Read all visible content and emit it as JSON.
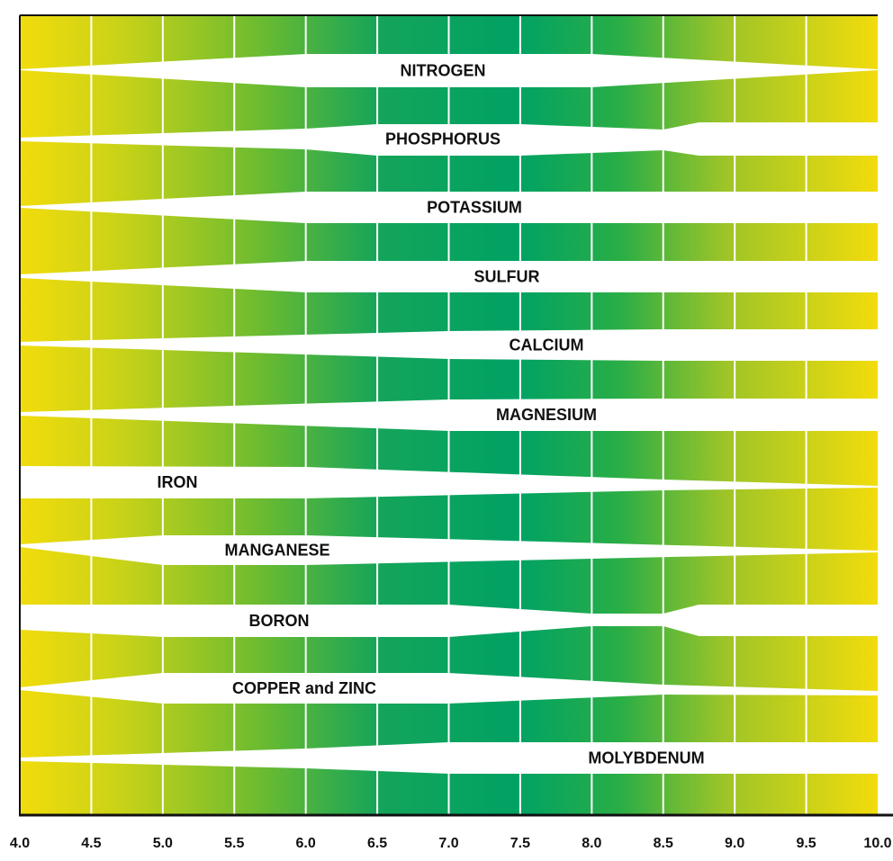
{
  "chart_data": {
    "type": "nutrient-availability",
    "categories": [
      "NITROGEN",
      "PHOSPHORUS",
      "POTASSIUM",
      "SULFUR",
      "CALCIUM",
      "MAGNESIUM",
      "IRON",
      "MANGANESE",
      "BORON",
      "COPPER and ZINC",
      "MOLYBDENUM"
    ],
    "xlim": [
      4,
      10
    ],
    "xticks": [
      {
        "value": 4,
        "label": "4.0"
      },
      4.5,
      {
        "value": 5,
        "label": "5.0"
      },
      5.5,
      {
        "value": 6,
        "label": "6.0"
      },
      6.5,
      {
        "value": 7,
        "label": "7.0"
      },
      7.5,
      {
        "value": 8,
        "label": "8.0"
      },
      8.5,
      {
        "value": 9,
        "label": "9.0"
      },
      9.5,
      {
        "value": 10,
        "label": "10.0"
      }
    ],
    "grid": true
  }
}
